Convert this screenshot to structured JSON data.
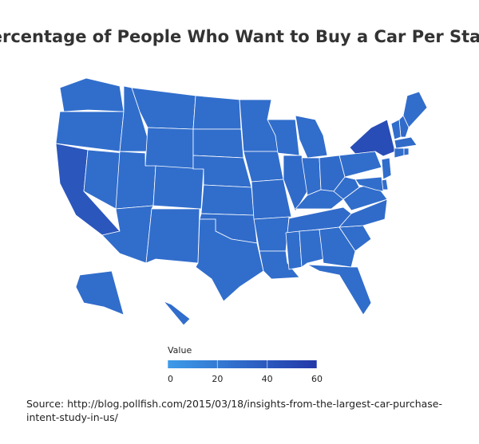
{
  "chart_data": {
    "type": "choropleth",
    "title": "Percentage of People Who Want to Buy a Car Per State",
    "values": [
      27,
      27,
      42,
      28,
      27,
      27,
      27,
      28,
      28,
      27,
      28,
      27,
      27,
      28,
      27,
      29,
      27,
      28,
      28,
      29,
      28,
      28,
      27,
      29,
      28,
      28,
      29,
      28,
      29,
      28,
      28,
      28,
      28,
      28,
      29,
      47,
      28,
      28,
      27,
      28,
      29,
      28,
      29,
      28,
      29,
      28,
      28,
      27,
      28
    ],
    "color_scale": [
      "#3d9be9",
      "#2338a8"
    ],
    "legend": {
      "title": "Value",
      "range": [
        0,
        60
      ],
      "ticks": [
        0,
        20,
        40,
        60
      ]
    },
    "source": "Source: http://blog.pollfish.com/2015/03/18/insights-from-the-largest-car-purchase-intent-study-in-us/"
  }
}
